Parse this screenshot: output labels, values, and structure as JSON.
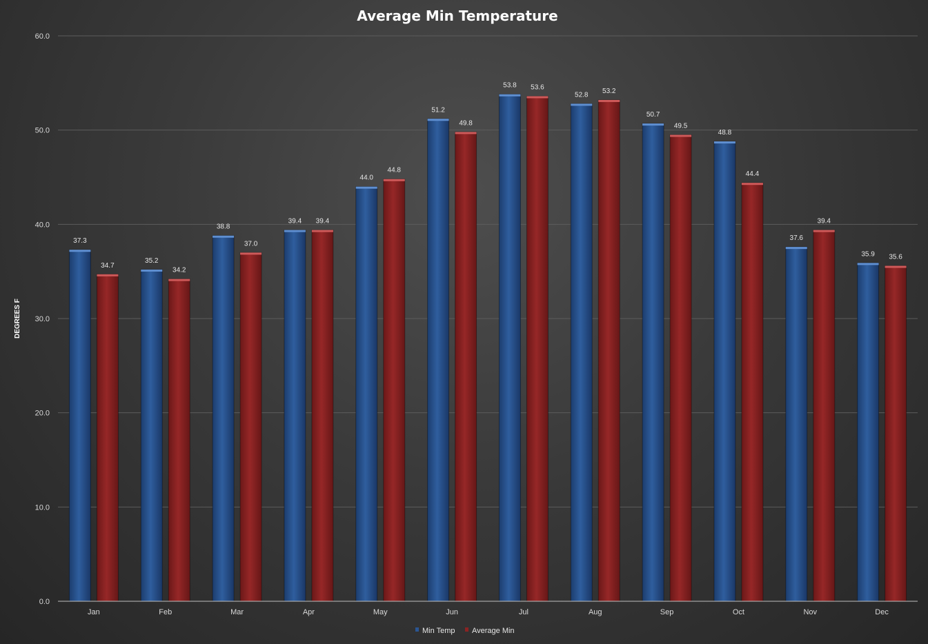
{
  "chart_data": {
    "type": "bar",
    "title": "Average Min Temperature",
    "xlabel": "",
    "ylabel": "DEGREES F",
    "ylim": [
      0,
      60
    ],
    "yticks": [
      "0.0",
      "10.0",
      "20.0",
      "30.0",
      "40.0",
      "50.0",
      "60.0"
    ],
    "grid": true,
    "legend_position": "bottom",
    "categories": [
      "Jan",
      "Feb",
      "Mar",
      "Apr",
      "May",
      "Jun",
      "Jul",
      "Aug",
      "Sep",
      "Oct",
      "Nov",
      "Dec"
    ],
    "series": [
      {
        "name": "Min Temp",
        "color": "#2a5592",
        "values": [
          37.3,
          35.2,
          38.8,
          39.4,
          44.0,
          51.2,
          53.8,
          52.8,
          50.7,
          48.8,
          37.6,
          35.9
        ],
        "labels": [
          "37.3",
          "35.2",
          "38.8",
          "39.4",
          "44.0",
          "51.2",
          "53.8",
          "52.8",
          "50.7",
          "48.8",
          "37.6",
          "35.9"
        ]
      },
      {
        "name": "Average Min",
        "color": "#8b2323",
        "values": [
          34.7,
          34.2,
          37.0,
          39.4,
          44.8,
          49.8,
          53.6,
          53.2,
          49.5,
          44.4,
          39.4,
          35.6
        ],
        "labels": [
          "34.7",
          "34.2",
          "37.0",
          "39.4",
          "44.8",
          "49.8",
          "53.6",
          "53.2",
          "49.5",
          "44.4",
          "39.4",
          "35.6"
        ]
      }
    ]
  }
}
